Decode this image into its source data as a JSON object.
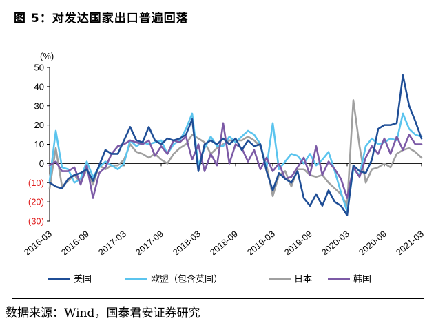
{
  "header": {
    "title": "图 5：对发达国家出口普遍回落"
  },
  "footer": {
    "source": "数据来源：Wind，国泰君安证券研究"
  },
  "chart_data": {
    "type": "line",
    "title": "图 5：对发达国家出口普遍回落",
    "ylabel": "(%)",
    "ylim": [
      -30,
      50
    ],
    "yticks": [
      50,
      40,
      30,
      20,
      10,
      0,
      -10,
      -20,
      -30
    ],
    "ytick_labels": [
      "50",
      "40",
      "30",
      "20",
      "10",
      "0",
      "(10)",
      "(20)",
      "(30)"
    ],
    "negative_label_color": "#e02020",
    "xtick_labels": [
      "2016-03",
      "2016-09",
      "2017-03",
      "2017-09",
      "2018-03",
      "2018-09",
      "2019-03",
      "2019-09",
      "2020-03",
      "2020-09",
      "2021-03"
    ],
    "x": [
      "2016-03",
      "2016-04",
      "2016-05",
      "2016-06",
      "2016-07",
      "2016-08",
      "2016-09",
      "2016-10",
      "2016-11",
      "2016-12",
      "2017-01",
      "2017-02",
      "2017-03",
      "2017-04",
      "2017-05",
      "2017-06",
      "2017-07",
      "2017-08",
      "2017-09",
      "2017-10",
      "2017-11",
      "2017-12",
      "2018-01",
      "2018-02",
      "2018-03",
      "2018-04",
      "2018-05",
      "2018-06",
      "2018-07",
      "2018-08",
      "2018-09",
      "2018-10",
      "2018-11",
      "2018-12",
      "2019-01",
      "2019-02",
      "2019-03",
      "2019-04",
      "2019-05",
      "2019-06",
      "2019-07",
      "2019-08",
      "2019-09",
      "2019-10",
      "2019-11",
      "2019-12",
      "2020-01",
      "2020-02",
      "2020-03",
      "2020-04",
      "2020-05",
      "2020-06",
      "2020-07",
      "2020-08",
      "2020-09",
      "2020-10",
      "2020-11",
      "2020-12",
      "2021-01",
      "2021-02",
      "2021-03"
    ],
    "legend_position": "bottom",
    "grid": false,
    "series": [
      {
        "name": "美国",
        "color": "#1f4e96",
        "values": [
          -10,
          -12,
          -13,
          -8,
          -6,
          -5,
          -3,
          -9,
          -1,
          7,
          5,
          5,
          12,
          19,
          12,
          11,
          19,
          12,
          10,
          13,
          12,
          13,
          15,
          23,
          -4,
          10,
          12,
          10,
          13,
          10,
          13,
          7,
          12,
          9,
          10,
          -4,
          -14,
          -5,
          -8,
          -10,
          -4,
          -18,
          -22,
          -16,
          -22,
          -14,
          -20,
          -22,
          -27,
          -1,
          -4,
          -5,
          2,
          18,
          20,
          20,
          21,
          46,
          30,
          22,
          13
        ]
      },
      {
        "name": "欧盟（包含英国）",
        "color": "#5bc4ee",
        "values": [
          -9,
          17,
          -2,
          -3,
          -10,
          -8,
          1,
          -7,
          -2,
          1,
          -1,
          -3,
          0,
          12,
          9,
          11,
          10,
          11,
          12,
          5,
          10,
          12,
          18,
          26,
          -1,
          8,
          14,
          9,
          9,
          14,
          11,
          14,
          17,
          15,
          10,
          -2,
          21,
          -3,
          1,
          5,
          4,
          0,
          5,
          -1,
          2,
          6,
          -4,
          -15,
          -25,
          -3,
          -6,
          9,
          13,
          10,
          11,
          13,
          12,
          26,
          18,
          15,
          14
        ]
      },
      {
        "name": "日本",
        "color": "#a0a0a0",
        "values": [
          -13,
          8,
          -12,
          -9,
          -6,
          -10,
          -3,
          -11,
          -1,
          -3,
          -1,
          -1,
          2,
          10,
          6,
          5,
          3,
          5,
          2,
          0,
          5,
          8,
          10,
          15,
          13,
          11,
          5,
          8,
          10,
          12,
          12,
          12,
          14,
          12,
          9,
          -1,
          -17,
          -6,
          -4,
          -12,
          -3,
          -3,
          -6,
          -7,
          -6,
          -10,
          -13,
          -16,
          -22,
          33,
          9,
          -10,
          -3,
          -2,
          0,
          -2,
          5,
          7,
          8,
          6,
          3
        ]
      },
      {
        "name": "韩国",
        "color": "#7c5aa6",
        "values": [
          -1,
          1,
          -4,
          -4,
          -2,
          -11,
          -1,
          -18,
          -5,
          -2,
          5,
          9,
          10,
          12,
          11,
          10,
          12,
          4,
          9,
          5,
          12,
          11,
          14,
          2,
          10,
          -4,
          5,
          -1,
          21,
          0,
          10,
          8,
          1,
          7,
          -3,
          3,
          -4,
          0,
          -8,
          -7,
          -2,
          3,
          -6,
          9,
          -6,
          1,
          -3,
          -8,
          -18,
          -2,
          -7,
          3,
          9,
          5,
          13,
          5,
          14,
          7,
          15,
          10,
          10
        ]
      }
    ]
  }
}
